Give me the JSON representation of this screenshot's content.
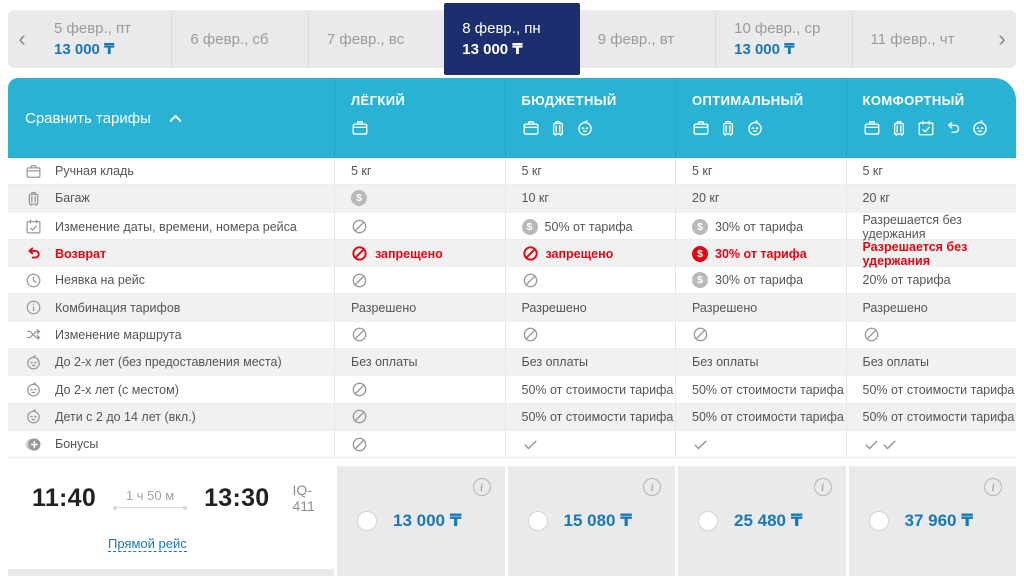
{
  "colors": {
    "cyan": "#29b2d3",
    "navy": "#1c2e6d",
    "blue": "#1878b8",
    "red": "#e30613"
  },
  "date_carousel": {
    "prev_icon": "‹",
    "next_icon": "›",
    "days": [
      {
        "date": "5 февр., пт",
        "price": "13 000 ₸",
        "selected": false
      },
      {
        "date": "6 февр., сб",
        "price": "",
        "selected": false
      },
      {
        "date": "7 февр., вс",
        "price": "",
        "selected": false
      },
      {
        "date": "8 февр., пн",
        "price": "13 000 ₸",
        "selected": true
      },
      {
        "date": "9 февр., вт",
        "price": "",
        "selected": false
      },
      {
        "date": "10 февр., ср",
        "price": "13 000 ₸",
        "selected": false
      },
      {
        "date": "11 февр., чт",
        "price": "",
        "selected": false
      }
    ]
  },
  "fare_table": {
    "compare_label": "Сравнить тарифы",
    "collapse_icon": "chevron-up",
    "columns": [
      {
        "name": "ЛЁГКИЙ",
        "icons": [
          "briefcase"
        ]
      },
      {
        "name": "БЮДЖЕТНЫЙ",
        "icons": [
          "briefcase",
          "suitcase",
          "baby"
        ]
      },
      {
        "name": "ОПТИМАЛЬНЫЙ",
        "icons": [
          "briefcase",
          "suitcase",
          "baby"
        ]
      },
      {
        "name": "КОМФОРТНЫЙ",
        "icons": [
          "briefcase",
          "suitcase",
          "calendar",
          "return",
          "baby"
        ]
      }
    ],
    "rows": [
      {
        "icon": "briefcase",
        "label": "Ручная кладь",
        "red": false,
        "cells": [
          {
            "text": "5 кг"
          },
          {
            "text": "5 кг"
          },
          {
            "text": "5 кг"
          },
          {
            "text": "5 кг"
          }
        ]
      },
      {
        "icon": "suitcase",
        "label": "Багаж",
        "red": false,
        "cells": [
          {
            "icon": "dollar"
          },
          {
            "text": "10 кг"
          },
          {
            "text": "20 кг"
          },
          {
            "text": "20 кг"
          }
        ]
      },
      {
        "icon": "calendar",
        "label": "Изменение даты, времени, номера рейса",
        "red": false,
        "cells": [
          {
            "icon": "ban"
          },
          {
            "icon": "dollar",
            "text": "50% от тарифа"
          },
          {
            "icon": "dollar",
            "text": "30% от тарифа"
          },
          {
            "text": "Разрешается без удержания"
          }
        ]
      },
      {
        "icon": "return",
        "label": "Возврат",
        "red": true,
        "cells": [
          {
            "icon": "ban",
            "text": "запрещено",
            "red": true
          },
          {
            "icon": "ban",
            "text": "запрещено",
            "red": true
          },
          {
            "icon": "dollar",
            "text": "30% от тарифа",
            "red": true
          },
          {
            "text": "Разрешается без удержания",
            "red": true
          }
        ]
      },
      {
        "icon": "clock",
        "label": "Неявка на рейс",
        "red": false,
        "cells": [
          {
            "icon": "ban"
          },
          {
            "icon": "ban"
          },
          {
            "icon": "dollar",
            "text": "30% от тарифа"
          },
          {
            "text": "20% от тарифа"
          }
        ]
      },
      {
        "icon": "info",
        "label": "Комбинация тарифов",
        "red": false,
        "cells": [
          {
            "text": "Разрешено"
          },
          {
            "text": "Разрешено"
          },
          {
            "text": "Разрешено"
          },
          {
            "text": "Разрешено"
          }
        ]
      },
      {
        "icon": "shuffle",
        "label": "Изменение маршрута",
        "red": false,
        "cells": [
          {
            "icon": "ban"
          },
          {
            "icon": "ban"
          },
          {
            "icon": "ban"
          },
          {
            "icon": "ban"
          }
        ]
      },
      {
        "icon": "baby",
        "label": "До 2-х лет (без предоставления места)",
        "red": false,
        "cells": [
          {
            "text": "Без оплаты"
          },
          {
            "text": "Без оплаты"
          },
          {
            "text": "Без оплаты"
          },
          {
            "text": "Без оплаты"
          }
        ]
      },
      {
        "icon": "baby",
        "label": "До 2-х лет (с местом)",
        "red": false,
        "cells": [
          {
            "icon": "ban"
          },
          {
            "text": "50% от стоимости тарифа"
          },
          {
            "text": "50% от стоимости тарифа"
          },
          {
            "text": "50% от стоимости тарифа"
          }
        ]
      },
      {
        "icon": "baby",
        "label": "Дети с 2 до 14 лет (вкл.)",
        "red": false,
        "cells": [
          {
            "icon": "ban"
          },
          {
            "text": "50% от стоимости тарифа"
          },
          {
            "text": "50% от стоимости тарифа"
          },
          {
            "text": "50% от стоимости тарифа"
          }
        ]
      },
      {
        "icon": "bonus",
        "label": "Бонусы",
        "red": false,
        "cells": [
          {
            "icon": "ban"
          },
          {
            "icon": "check"
          },
          {
            "icon": "check"
          },
          {
            "icon": "check-double"
          }
        ]
      }
    ]
  },
  "flight": {
    "departure_time": "11:40",
    "duration": "1 ч 50 м",
    "arrival_time": "13:30",
    "number": "IQ-411",
    "direct_label": "Прямой рейс"
  },
  "prices": [
    {
      "amount": "13 000 ₸"
    },
    {
      "amount": "15 080 ₸"
    },
    {
      "amount": "25 480 ₸"
    },
    {
      "amount": "37 960 ₸"
    }
  ]
}
